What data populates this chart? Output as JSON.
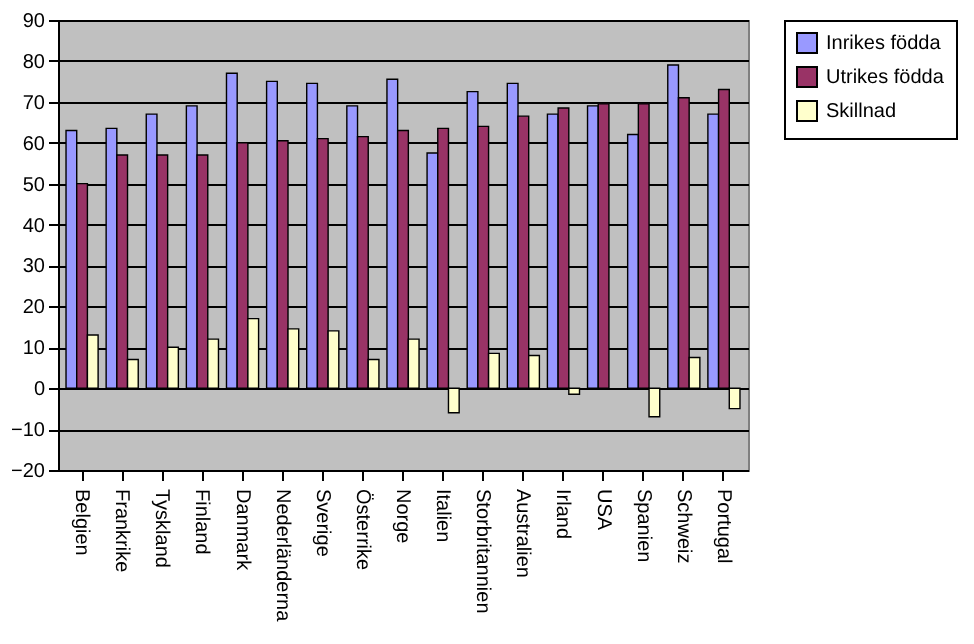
{
  "chart_data": {
    "type": "bar",
    "categories": [
      "Belgien",
      "Frankrike",
      "Tyskland",
      "Finland",
      "Danmark",
      "Nederländerna",
      "Sverige",
      "Österrike",
      "Norge",
      "Italien",
      "Storbritannien",
      "Australien",
      "Irland",
      "USA",
      "Spanien",
      "Schweiz",
      "Portugal"
    ],
    "series": [
      {
        "name": "Inrikes födda",
        "color": "#9999ff",
        "values": [
          63,
          63.5,
          67,
          69,
          77,
          75,
          74.5,
          69,
          75.5,
          57.5,
          72.5,
          74.5,
          67,
          69,
          62,
          79,
          67
        ]
      },
      {
        "name": "Utrikes födda",
        "color": "#993366",
        "values": [
          50,
          57,
          57,
          57,
          60,
          60.5,
          61,
          61.5,
          63,
          63.5,
          64,
          66.5,
          68.5,
          69.5,
          69.5,
          71,
          73
        ]
      },
      {
        "name": "Skillnad",
        "color": "#ffffcc",
        "values": [
          13,
          7,
          10,
          12,
          17,
          14.5,
          14,
          7,
          12,
          -6,
          8.5,
          8,
          -1.5,
          null,
          -7,
          7.5,
          -5
        ]
      }
    ],
    "ylim": [
      -20,
      90
    ],
    "yticks": [
      -20,
      -10,
      0,
      10,
      20,
      30,
      40,
      50,
      60,
      70,
      80,
      90
    ],
    "grid": "y",
    "legend": "right"
  }
}
